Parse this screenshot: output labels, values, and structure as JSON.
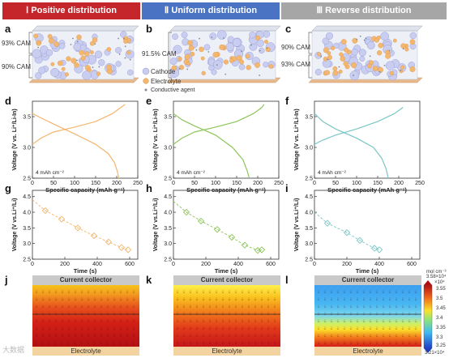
{
  "headers": [
    {
      "label": "Ⅰ Positive distribution",
      "color": "#c5262c"
    },
    {
      "label": "Ⅱ Uniform distribution",
      "color": "#4a73c4"
    },
    {
      "label": "Ⅲ Reverse distribution",
      "color": "#a6a6a6"
    }
  ],
  "panel_letters": [
    "a",
    "b",
    "c",
    "d",
    "e",
    "f",
    "g",
    "h",
    "i",
    "j",
    "k",
    "l"
  ],
  "schematics": {
    "a": {
      "top_label": "93% CAM",
      "bottom_label": "90% CAM"
    },
    "b": {
      "label": "91.5% CAM"
    },
    "c": {
      "top_label": "90% CAM",
      "bottom_label": "93% CAM"
    },
    "legend": {
      "cathode": "Cathode",
      "electrolyte": "Electrolyte",
      "agent": "Conductive agent"
    }
  },
  "chart_data": [
    {
      "type": "line",
      "panel": "d",
      "xlabel": "Specific capacity (mAh g⁻¹)",
      "ylabel": "Voltage (V vs. Li⁺/Li-In)",
      "xlim": [
        0,
        250
      ],
      "ylim": [
        2.5,
        3.75
      ],
      "xticks": [
        "0",
        "50",
        "100",
        "150",
        "200",
        "250"
      ],
      "yticks": [
        "2.5",
        "3.0",
        "3.5"
      ],
      "annotation": "4 mAh cm⁻²",
      "color": "#f2b66d",
      "series": [
        {
          "x": [
            0,
            20,
            50,
            100,
            150,
            190,
            210,
            220
          ],
          "y": [
            3.05,
            3.15,
            3.25,
            3.33,
            3.42,
            3.55,
            3.65,
            3.7
          ]
        },
        {
          "x": [
            0,
            20,
            50,
            100,
            150,
            180,
            195,
            202,
            205
          ],
          "y": [
            3.55,
            3.48,
            3.38,
            3.22,
            3.05,
            2.9,
            2.75,
            2.6,
            2.5
          ]
        }
      ]
    },
    {
      "type": "line",
      "panel": "e",
      "xlabel": "Specific capacity (mAh g⁻¹)",
      "ylabel": "Voltage (V vs. Li⁺/Li-In)",
      "xlim": [
        0,
        250
      ],
      "ylim": [
        2.5,
        3.75
      ],
      "xticks": [
        "0",
        "50",
        "100",
        "150",
        "200",
        "250"
      ],
      "yticks": [
        "2.5",
        "3.0",
        "3.5"
      ],
      "annotation": "4 mAh cm⁻²",
      "color": "#8dc65a",
      "series": [
        {
          "x": [
            0,
            20,
            50,
            100,
            150,
            190,
            210,
            215
          ],
          "y": [
            3.05,
            3.15,
            3.25,
            3.33,
            3.42,
            3.55,
            3.65,
            3.7
          ]
        },
        {
          "x": [
            0,
            20,
            50,
            100,
            140,
            165,
            175,
            180
          ],
          "y": [
            3.55,
            3.45,
            3.35,
            3.2,
            3.0,
            2.8,
            2.62,
            2.5
          ]
        }
      ]
    },
    {
      "type": "line",
      "panel": "f",
      "xlabel": "Specific capacity (mAh g⁻¹)",
      "ylabel": "Voltage (V vs. Li⁺/Li-In)",
      "xlim": [
        0,
        250
      ],
      "ylim": [
        2.5,
        3.75
      ],
      "xticks": [
        "0",
        "50",
        "100",
        "150",
        "200",
        "250"
      ],
      "yticks": [
        "2.5",
        "3.0",
        "3.5"
      ],
      "annotation": "4 mAh cm⁻²",
      "color": "#7cc6c6",
      "series": [
        {
          "x": [
            0,
            20,
            50,
            100,
            150,
            190,
            210
          ],
          "y": [
            3.05,
            3.12,
            3.2,
            3.3,
            3.42,
            3.55,
            3.65
          ]
        },
        {
          "x": [
            0,
            20,
            50,
            100,
            140,
            160,
            170,
            175
          ],
          "y": [
            3.55,
            3.42,
            3.3,
            3.15,
            3.0,
            2.82,
            2.65,
            2.5
          ]
        }
      ]
    },
    {
      "type": "scatter",
      "panel": "g",
      "xlabel": "Time (s)",
      "ylabel": "Voltage (V vs.Li⁺/Li)",
      "xlim": [
        0,
        650
      ],
      "ylim": [
        2.5,
        4.7
      ],
      "xticks": [
        "0",
        "200",
        "400",
        "600"
      ],
      "yticks": [
        "2.5",
        "3.0",
        "3.5",
        "4.0",
        "4.5"
      ],
      "color": "#f2b66d",
      "x": [
        80,
        180,
        280,
        380,
        470,
        550,
        590
      ],
      "y": [
        4.05,
        3.78,
        3.5,
        3.25,
        3.05,
        2.87,
        2.8
      ],
      "dashed_fit": true
    },
    {
      "type": "scatter",
      "panel": "h",
      "xlabel": "Time (s)",
      "ylabel": "Voltage (V vs.Li⁺/Li)",
      "xlim": [
        0,
        650
      ],
      "ylim": [
        2.5,
        4.7
      ],
      "xticks": [
        "0",
        "200",
        "400",
        "600"
      ],
      "yticks": [
        "2.5",
        "3.0",
        "3.5",
        "4.0",
        "4.5"
      ],
      "color": "#8dc65a",
      "x": [
        80,
        170,
        270,
        360,
        440,
        520,
        545
      ],
      "y": [
        4.0,
        3.72,
        3.45,
        3.2,
        2.95,
        2.78,
        2.8
      ],
      "dashed_fit": true
    },
    {
      "type": "scatter",
      "panel": "i",
      "xlabel": "Time (s)",
      "ylabel": "Voltage (V vs.Li⁺/Li)",
      "xlim": [
        0,
        650
      ],
      "ylim": [
        2.5,
        4.7
      ],
      "xticks": [
        "0",
        "200",
        "400",
        "600"
      ],
      "yticks": [
        "2.5",
        "3.0",
        "3.5",
        "4.0",
        "4.5"
      ],
      "color": "#7cc6c6",
      "x": [
        80,
        200,
        280,
        370,
        400
      ],
      "y": [
        3.65,
        3.35,
        3.1,
        2.85,
        2.8
      ],
      "dashed_fit": true
    },
    {
      "type": "heatmap",
      "panel": "j",
      "top_label": "Current collector",
      "bottom_label": "Electrolyte",
      "profile": "positive"
    },
    {
      "type": "heatmap",
      "panel": "k",
      "top_label": "Current collector",
      "bottom_label": "Electrolyte",
      "profile": "uniform"
    },
    {
      "type": "heatmap",
      "panel": "l",
      "top_label": "Current collector",
      "bottom_label": "Electrolyte",
      "profile": "reverse"
    }
  ],
  "colorbar": {
    "unit": "mol cm⁻³",
    "max_label": "3.58×10⁴",
    "multiplier": "×10⁴",
    "ticks": [
      "3.55",
      "3.5",
      "3.45",
      "3.4",
      "3.35",
      "3.3",
      "3.25"
    ],
    "min_label": "3.21×10⁴"
  },
  "watermark": "大数据"
}
